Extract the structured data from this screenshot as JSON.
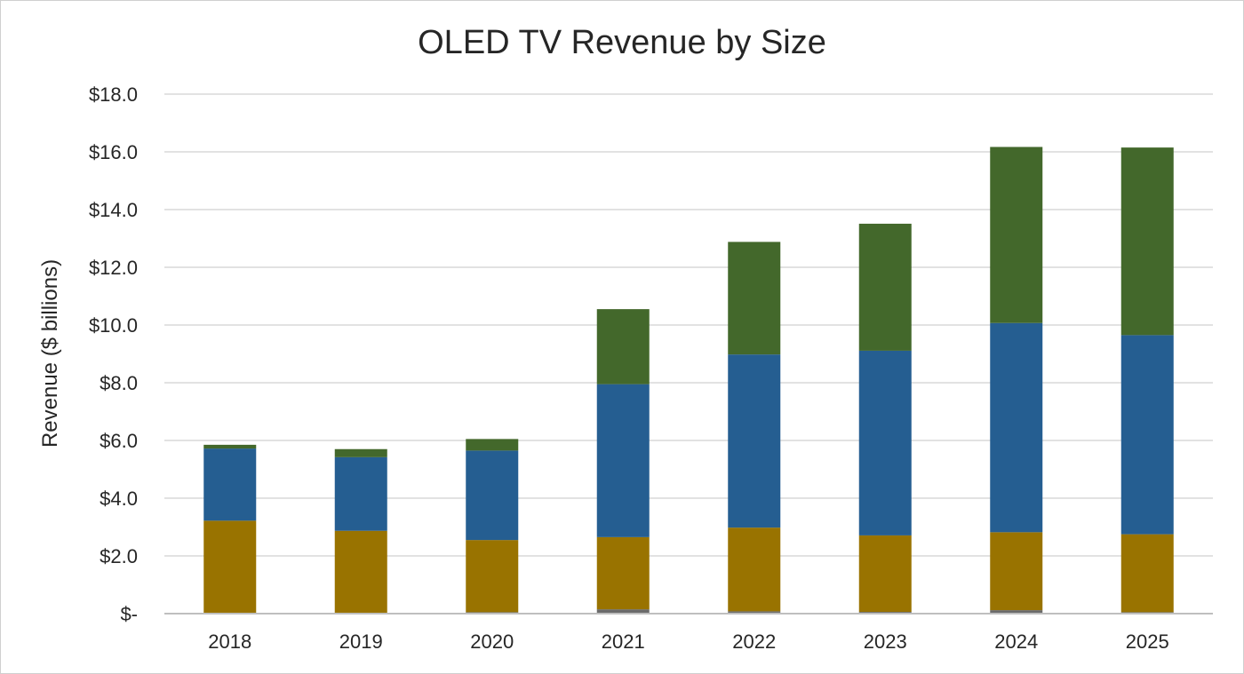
{
  "chart_data": {
    "type": "bar",
    "stacked": true,
    "title": "OLED TV Revenue by Size",
    "xlabel": "",
    "ylabel": "Revenue ($ billions)",
    "ylim": [
      0,
      18
    ],
    "grid": true,
    "legend": "none",
    "categories": [
      "2018",
      "2019",
      "2020",
      "2021",
      "2022",
      "2023",
      "2024",
      "2025"
    ],
    "y_ticks": [
      0,
      2,
      4,
      6,
      8,
      10,
      12,
      14,
      16,
      18
    ],
    "y_tick_labels": [
      "$-",
      "$2.0",
      "$4.0",
      "$6.0",
      "$8.0",
      "$10.0",
      "$12.0",
      "$14.0",
      "$16.0",
      "$18.0"
    ],
    "series": [
      {
        "color": "#6b6b6b",
        "values": [
          0.02,
          0.02,
          0.05,
          0.15,
          0.08,
          0.06,
          0.12,
          0.05
        ]
      },
      {
        "color": "#997300",
        "values": [
          3.2,
          2.85,
          2.5,
          2.5,
          2.9,
          2.65,
          2.7,
          2.7
        ]
      },
      {
        "color": "#255e91",
        "values": [
          2.5,
          2.55,
          3.1,
          5.3,
          6.0,
          6.4,
          7.25,
          6.9
        ]
      },
      {
        "color": "#43682b",
        "values": [
          0.13,
          0.28,
          0.4,
          2.6,
          3.9,
          4.4,
          6.1,
          6.5
        ]
      }
    ]
  },
  "colors": {
    "grid": "#d9d9d9",
    "axis": "#bfbfbf",
    "text": "#262626"
  }
}
